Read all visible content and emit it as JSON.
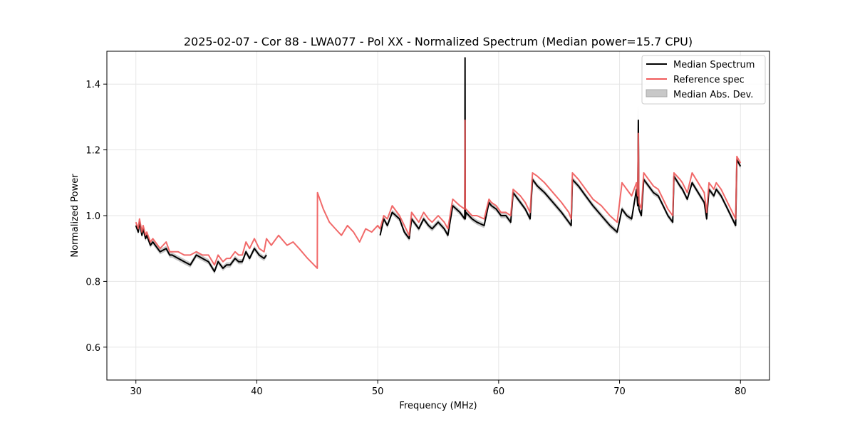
{
  "chart_data": {
    "type": "line",
    "title": "2025-02-07 - Cor 88 - LWA077 - Pol XX - Normalized Spectrum (Median power=15.7 CPU)",
    "xlabel": "Frequency (MHz)",
    "ylabel": "Normalized Power",
    "xlim": [
      27.6,
      82.4
    ],
    "ylim": [
      0.5,
      1.5
    ],
    "xticks": [
      30,
      40,
      50,
      60,
      70,
      80
    ],
    "yticks": [
      0.6,
      0.8,
      1.0,
      1.2,
      1.4
    ],
    "grid": true,
    "legend_position": "top-right",
    "legend": [
      "Median Spectrum",
      "Reference spec",
      "Median Abs. Dev."
    ],
    "colors": {
      "median": "#000000",
      "reference": "#f05a5a",
      "mad_fill": "#c8c8c8",
      "spike_overlap": "#8b0000"
    },
    "series": [
      {
        "name": "Median Spectrum",
        "segments": [
          {
            "x": [
              30.0,
              30.2,
              30.3,
              30.5,
              30.6,
              30.8,
              30.9,
              31.2,
              31.4,
              31.8,
              32.0,
              32.5,
              32.8,
              33.0,
              33.5,
              34.0,
              34.5,
              35.0,
              35.5,
              36.0,
              36.5,
              36.8,
              37.2,
              37.5,
              37.8,
              38.2,
              38.5,
              38.8,
              39.1,
              39.4,
              39.8,
              40.2,
              40.6,
              40.8
            ],
            "y": [
              0.97,
              0.95,
              0.98,
              0.94,
              0.96,
              0.93,
              0.94,
              0.91,
              0.92,
              0.9,
              0.89,
              0.9,
              0.88,
              0.88,
              0.87,
              0.86,
              0.85,
              0.88,
              0.87,
              0.86,
              0.83,
              0.86,
              0.84,
              0.85,
              0.85,
              0.87,
              0.86,
              0.86,
              0.89,
              0.87,
              0.9,
              0.88,
              0.87,
              0.88
            ]
          },
          {
            "x": [
              50.2,
              50.5,
              50.8,
              51.2,
              51.8,
              52.2,
              52.6,
              52.8,
              53.4,
              53.8,
              54.2,
              54.5,
              55.0,
              55.5,
              55.8,
              56.2,
              56.8,
              57.2,
              57.22,
              57.24,
              57.3,
              57.8,
              58.2,
              58.8,
              59.2,
              59.4,
              59.8,
              60.2,
              60.6,
              61.0,
              61.2,
              61.8,
              62.2,
              62.6,
              62.8,
              63.2,
              63.8,
              64.5,
              65.2,
              65.8,
              66.0,
              66.1,
              66.6,
              67.2,
              67.8,
              68.5,
              69.2,
              69.8,
              70.2,
              70.6,
              71.0,
              71.4,
              71.5,
              71.55,
              71.6,
              71.8,
              72.0,
              72.4,
              72.8,
              73.2,
              73.6,
              74.0,
              74.4,
              74.5,
              75.0,
              75.2,
              75.6,
              76.0,
              76.5,
              77.0,
              77.2,
              77.4,
              77.8,
              78.0,
              78.4,
              78.8,
              79.2,
              79.6,
              79.7,
              80.0
            ],
            "y": [
              0.94,
              0.99,
              0.97,
              1.01,
              0.99,
              0.95,
              0.93,
              0.99,
              0.96,
              0.99,
              0.97,
              0.96,
              0.98,
              0.96,
              0.94,
              1.03,
              1.01,
              0.99,
              1.48,
              0.99,
              1.01,
              0.99,
              0.98,
              0.97,
              1.04,
              1.03,
              1.02,
              1.0,
              1.0,
              0.98,
              1.07,
              1.04,
              1.02,
              0.99,
              1.11,
              1.09,
              1.07,
              1.04,
              1.01,
              0.98,
              0.97,
              1.11,
              1.09,
              1.06,
              1.03,
              1.0,
              0.97,
              0.95,
              1.02,
              1.0,
              0.99,
              1.08,
              1.03,
              1.29,
              1.02,
              1.0,
              1.11,
              1.09,
              1.07,
              1.06,
              1.03,
              1.0,
              0.98,
              1.12,
              1.09,
              1.08,
              1.05,
              1.1,
              1.07,
              1.04,
              0.99,
              1.08,
              1.06,
              1.08,
              1.06,
              1.03,
              1.0,
              0.97,
              1.17,
              1.15
            ]
          }
        ]
      },
      {
        "name": "Reference spec",
        "x": [
          30.0,
          30.2,
          30.3,
          30.5,
          30.6,
          30.8,
          30.9,
          31.2,
          31.4,
          31.8,
          32.0,
          32.5,
          32.8,
          33.0,
          33.5,
          34.0,
          34.5,
          35.0,
          35.5,
          36.0,
          36.5,
          36.8,
          37.2,
          37.5,
          37.8,
          38.2,
          38.5,
          38.8,
          39.1,
          39.4,
          39.8,
          40.2,
          40.6,
          40.8,
          41.2,
          41.8,
          42.5,
          43.0,
          43.5,
          44.2,
          45.0,
          45.02,
          45.5,
          46.0,
          46.5,
          47.0,
          47.5,
          48.0,
          48.5,
          49.0,
          49.5,
          50.0,
          50.2,
          50.5,
          50.8,
          51.2,
          51.8,
          52.2,
          52.6,
          52.8,
          53.4,
          53.8,
          54.2,
          54.5,
          55.0,
          55.5,
          55.8,
          56.2,
          56.8,
          57.2,
          57.22,
          57.24,
          57.3,
          57.8,
          58.2,
          58.8,
          59.2,
          59.4,
          59.8,
          60.2,
          60.6,
          61.0,
          61.2,
          61.8,
          62.2,
          62.6,
          62.8,
          63.2,
          63.8,
          64.5,
          65.2,
          65.8,
          66.0,
          66.1,
          66.6,
          67.2,
          67.8,
          68.5,
          69.2,
          69.8,
          70.2,
          70.6,
          71.0,
          71.4,
          71.5,
          71.55,
          71.6,
          71.8,
          72.0,
          72.4,
          72.8,
          73.2,
          73.6,
          74.0,
          74.4,
          74.5,
          75.0,
          75.2,
          75.6,
          76.0,
          76.5,
          77.0,
          77.2,
          77.4,
          77.8,
          78.0,
          78.4,
          78.8,
          79.2,
          79.6,
          79.7,
          80.0
        ],
        "y": [
          0.98,
          0.96,
          0.99,
          0.95,
          0.97,
          0.94,
          0.95,
          0.92,
          0.93,
          0.91,
          0.9,
          0.92,
          0.89,
          0.89,
          0.89,
          0.88,
          0.88,
          0.89,
          0.88,
          0.88,
          0.85,
          0.88,
          0.86,
          0.87,
          0.87,
          0.89,
          0.88,
          0.88,
          0.92,
          0.9,
          0.93,
          0.9,
          0.89,
          0.93,
          0.91,
          0.94,
          0.91,
          0.92,
          0.9,
          0.87,
          0.84,
          1.07,
          1.02,
          0.98,
          0.96,
          0.94,
          0.97,
          0.95,
          0.92,
          0.96,
          0.95,
          0.97,
          0.96,
          1.0,
          0.99,
          1.03,
          1.0,
          0.97,
          0.94,
          1.01,
          0.98,
          1.01,
          0.99,
          0.98,
          1.0,
          0.98,
          0.96,
          1.05,
          1.03,
          1.02,
          1.29,
          1.02,
          1.02,
          1.0,
          1.0,
          0.99,
          1.05,
          1.04,
          1.03,
          1.01,
          1.01,
          1.0,
          1.08,
          1.06,
          1.04,
          1.01,
          1.13,
          1.12,
          1.1,
          1.07,
          1.04,
          1.01,
          0.99,
          1.13,
          1.11,
          1.08,
          1.05,
          1.03,
          1.0,
          0.98,
          1.1,
          1.08,
          1.06,
          1.1,
          1.06,
          1.25,
          1.04,
          1.02,
          1.13,
          1.11,
          1.09,
          1.08,
          1.05,
          1.02,
          1.0,
          1.13,
          1.11,
          1.1,
          1.07,
          1.13,
          1.1,
          1.07,
          1.01,
          1.1,
          1.08,
          1.1,
          1.08,
          1.05,
          1.02,
          0.99,
          1.18,
          1.16
        ]
      }
    ]
  }
}
